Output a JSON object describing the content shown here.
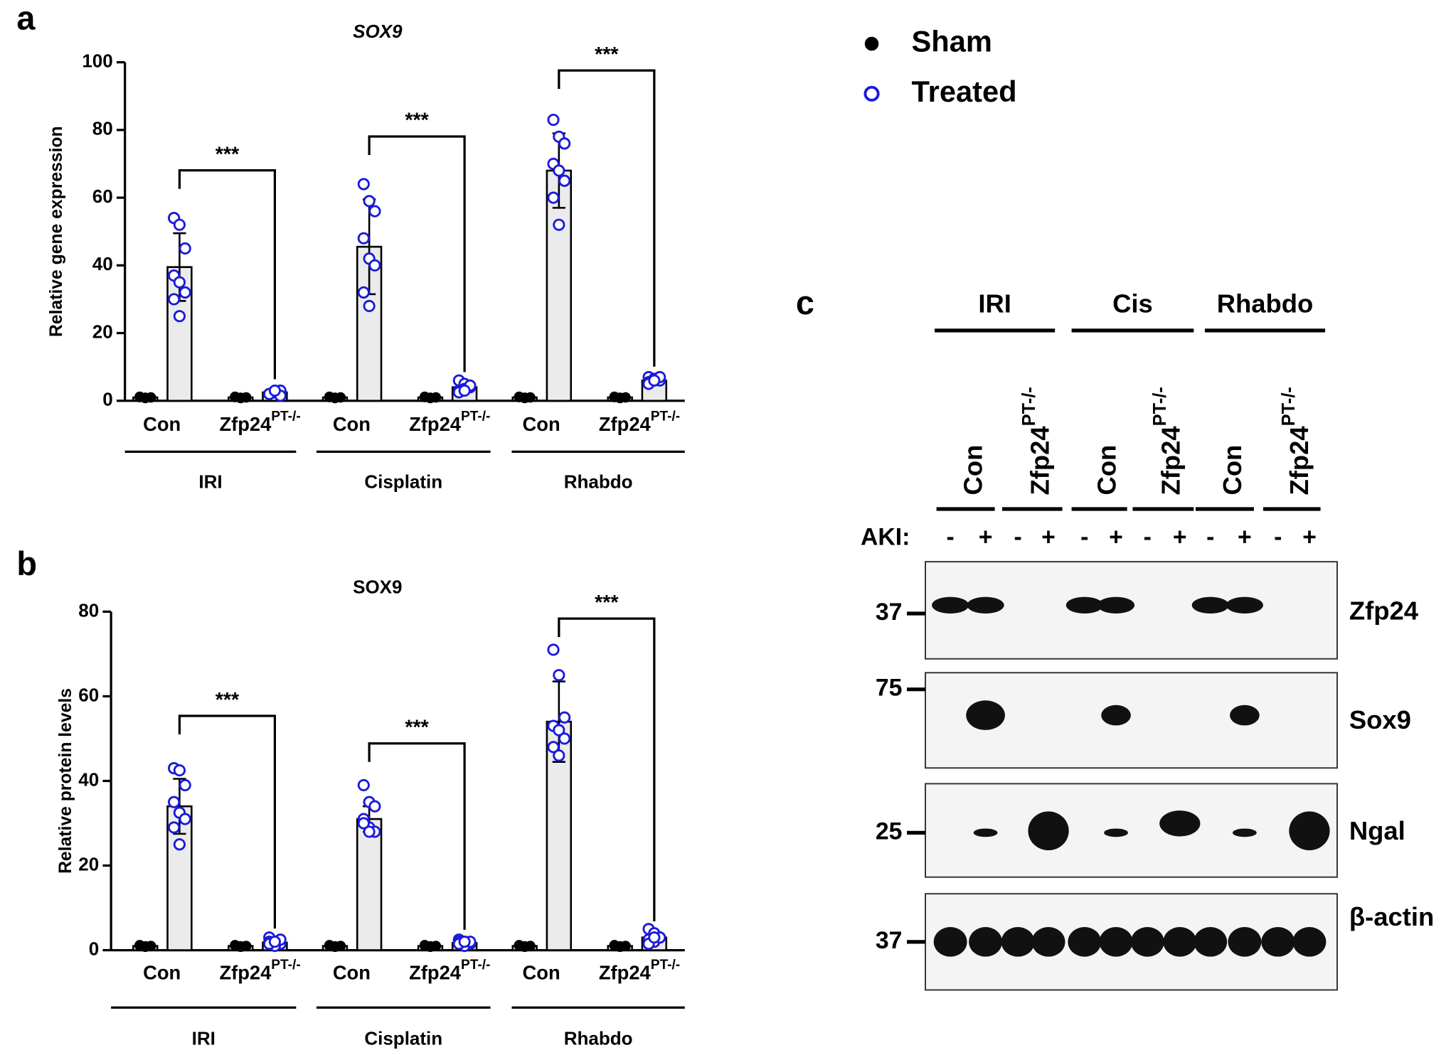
{
  "chart_data": [
    {
      "type": "bar",
      "panel": "a",
      "title": "SOX9",
      "title_italic": true,
      "y_label": "Relative gene expression",
      "ylim": [
        0,
        100
      ],
      "yticks": [
        0,
        20,
        40,
        60,
        80,
        100
      ],
      "groups": [
        "IRI",
        "Cisplatin",
        "Rhabdo"
      ],
      "categories": [
        "Con",
        "Zfp24",
        "Con",
        "Zfp24",
        "Con",
        "Zfp24"
      ],
      "category_sup": [
        null,
        "PT-/-",
        null,
        "PT-/-",
        null,
        "PT-/-"
      ],
      "significance": [
        "***",
        "***",
        "***"
      ],
      "series": [
        {
          "name": "Sham",
          "color": "#000000",
          "marker": "filled",
          "values": [
            1,
            1,
            1,
            1,
            1,
            1
          ],
          "errors": [
            0.2,
            0.2,
            0.2,
            0.2,
            0.2,
            0.2
          ],
          "points": [
            [
              1.1,
              0.9,
              1,
              1.2,
              0.8,
              1,
              1.1,
              0.9
            ],
            [
              1.1,
              0.9,
              1,
              1.2,
              0.8,
              1,
              1.1,
              0.9
            ],
            [
              1.1,
              0.9,
              1,
              1.2,
              0.8,
              1,
              1.1,
              0.9
            ],
            [
              1.1,
              0.9,
              1,
              1.2,
              0.8,
              1,
              1.1,
              0.9
            ],
            [
              1.1,
              0.9,
              1,
              1.2,
              0.8,
              1,
              1.1,
              0.9
            ],
            [
              1.1,
              0.9,
              1,
              1.2,
              0.8,
              1,
              1.1,
              0.9
            ]
          ]
        },
        {
          "name": "Treated",
          "color": "#1a1adb",
          "marker": "open",
          "values": [
            39.5,
            2.5,
            45.5,
            4,
            68,
            6
          ],
          "errors": [
            10,
            0.6,
            14,
            1.2,
            11,
            0.8
          ],
          "points": [
            [
              54,
              52,
              45,
              37,
              35,
              32,
              30,
              25
            ],
            [
              2,
              2.5,
              3,
              2,
              2.5,
              1.5,
              2,
              3
            ],
            [
              64,
              59,
              56,
              48,
              42,
              40,
              32,
              28
            ],
            [
              6,
              5,
              4,
              3,
              3.5,
              4.5,
              2.5,
              3
            ],
            [
              83,
              78,
              76,
              70,
              68,
              65,
              60,
              52
            ],
            [
              7,
              6.5,
              6,
              5.5,
              6,
              7,
              5,
              6
            ]
          ]
        }
      ]
    },
    {
      "type": "bar",
      "panel": "b",
      "title": "SOX9",
      "title_italic": false,
      "y_label": "Relative protein levels",
      "ylim": [
        0,
        80
      ],
      "yticks": [
        0,
        20,
        40,
        60,
        80
      ],
      "groups": [
        "IRI",
        "Cisplatin",
        "Rhabdo"
      ],
      "categories": [
        "Con",
        "Zfp24",
        "Con",
        "Zfp24",
        "Con",
        "Zfp24"
      ],
      "category_sup": [
        null,
        "PT-/-",
        null,
        "PT-/-",
        null,
        "PT-/-"
      ],
      "significance": [
        "***",
        "***",
        "***"
      ],
      "series": [
        {
          "name": "Sham",
          "color": "#000000",
          "marker": "filled",
          "values": [
            1,
            1,
            1,
            1,
            1,
            1
          ],
          "errors": [
            0.2,
            0.2,
            0.2,
            0.2,
            0.2,
            0.2
          ],
          "points": [
            [
              1.1,
              0.9,
              1,
              1.2,
              0.8,
              1,
              1.1,
              0.9
            ],
            [
              1.1,
              0.9,
              1,
              1.2,
              0.8,
              1,
              1.1,
              0.9
            ],
            [
              1.1,
              0.9,
              1,
              1.2,
              0.8,
              1,
              1.1,
              0.9
            ],
            [
              1.1,
              0.9,
              1,
              1.2,
              0.8,
              1,
              1.1,
              0.9
            ],
            [
              1.1,
              0.9,
              1,
              1.2,
              0.8,
              1,
              1.1,
              0.9
            ],
            [
              1.1,
              0.9,
              1,
              1.2,
              0.8,
              1,
              1.1,
              0.9
            ]
          ]
        },
        {
          "name": "Treated",
          "color": "#1a1adb",
          "marker": "open",
          "values": [
            34,
            1.8,
            31,
            1.7,
            54,
            3
          ],
          "errors": [
            6.5,
            0.7,
            3,
            0.5,
            9.5,
            1.2
          ],
          "points": [
            [
              43,
              42.5,
              39,
              35,
              32.5,
              31,
              29,
              25
            ],
            [
              3,
              2,
              1.5,
              2,
              1,
              2.5,
              1.5,
              2
            ],
            [
              39,
              35,
              34,
              31,
              29,
              28,
              30,
              28
            ],
            [
              2.5,
              2,
              1.5,
              2,
              1,
              2,
              1.5,
              2
            ],
            [
              71,
              65,
              55,
              53,
              52,
              50,
              48,
              46
            ],
            [
              5,
              4,
              3,
              2.5,
              2,
              3,
              1.5,
              3
            ]
          ]
        }
      ]
    }
  ],
  "blot": {
    "panel": "c",
    "groups": [
      "IRI",
      "Cis",
      "Rhabdo"
    ],
    "lanes": [
      "Con",
      "Zfp24",
      "Con",
      "Zfp24",
      "Con",
      "Zfp24"
    ],
    "lane_sup": [
      null,
      "PT-/-",
      null,
      "PT-/-",
      null,
      "PT-/-"
    ],
    "aki_label": "AKI:",
    "aki": [
      "-",
      "+",
      "-",
      "+",
      "-",
      "+",
      "-",
      "+",
      "-",
      "+",
      "-",
      "+"
    ],
    "proteins": [
      "Zfp24",
      "Sox9",
      "Ngal",
      "β-actin"
    ],
    "markers": [
      37,
      75,
      25,
      37
    ]
  }
}
